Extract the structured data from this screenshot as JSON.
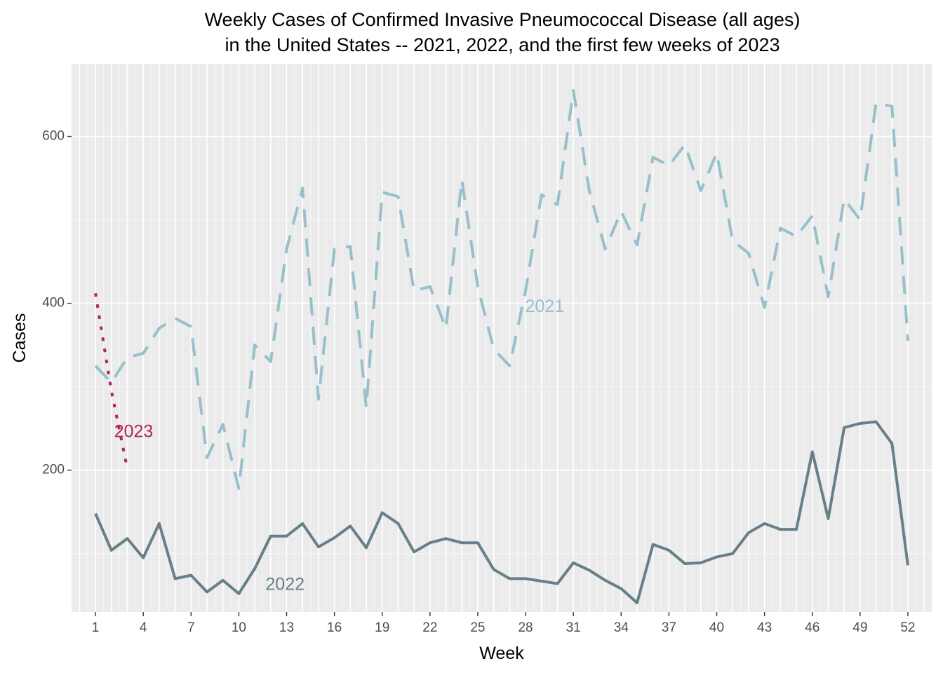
{
  "chart_data": {
    "type": "line",
    "title": "Weekly Cases of Confirmed Invasive Pneumococcal Disease (all ages)",
    "subtitle": "in the United States -- 2021, 2022, and the first few weeks of 2023",
    "xlabel": "Week",
    "ylabel": "Cases",
    "xlim": [
      -0.5,
      53.5
    ],
    "ylim": [
      30,
      687
    ],
    "x_ticks": [
      1,
      4,
      7,
      10,
      13,
      16,
      19,
      22,
      25,
      28,
      31,
      34,
      37,
      40,
      43,
      46,
      49,
      52
    ],
    "y_ticks": [
      200,
      400,
      600
    ],
    "grid": true,
    "legend": "none",
    "series": [
      {
        "name": "2021",
        "color": "#98bfcc",
        "dash": "dashed",
        "label_at": [
          29.2,
          395
        ],
        "x": [
          1,
          2,
          3,
          4,
          5,
          6,
          7,
          8,
          9,
          10,
          11,
          12,
          13,
          14,
          15,
          16,
          17,
          18,
          19,
          20,
          21,
          22,
          23,
          24,
          25,
          26,
          27,
          28,
          29,
          30,
          31,
          32,
          33,
          34,
          35,
          36,
          37,
          38,
          39,
          40,
          41,
          42,
          43,
          44,
          45,
          46,
          47,
          48,
          49,
          50,
          51,
          52
        ],
        "y": [
          325,
          305,
          335,
          340,
          370,
          382,
          372,
          215,
          255,
          178,
          350,
          330,
          465,
          538,
          285,
          465,
          468,
          275,
          533,
          528,
          415,
          420,
          370,
          548,
          420,
          345,
          325,
          415,
          530,
          518,
          655,
          535,
          465,
          510,
          470,
          575,
          565,
          590,
          535,
          580,
          475,
          460,
          395,
          490,
          480,
          505,
          408,
          525,
          500,
          640,
          636,
          355
        ]
      },
      {
        "name": "2022",
        "color": "#687f89",
        "dash": "solid",
        "label_at": [
          12.9,
          62
        ],
        "x": [
          1,
          2,
          3,
          4,
          5,
          6,
          7,
          8,
          9,
          10,
          11,
          12,
          13,
          14,
          15,
          16,
          17,
          18,
          19,
          20,
          21,
          22,
          23,
          24,
          25,
          26,
          27,
          28,
          29,
          30,
          31,
          32,
          33,
          34,
          35,
          36,
          37,
          38,
          39,
          40,
          41,
          42,
          43,
          44,
          45,
          46,
          47,
          48,
          49,
          50,
          51,
          52
        ],
        "y": [
          148,
          104,
          118,
          95,
          136,
          70,
          74,
          54,
          68,
          52,
          82,
          121,
          121,
          136,
          108,
          119,
          133,
          107,
          149,
          136,
          102,
          113,
          118,
          113,
          113,
          81,
          70,
          70,
          67,
          64,
          89,
          80,
          68,
          58,
          41,
          111,
          104,
          88,
          89,
          96,
          100,
          125,
          136,
          129,
          129,
          222,
          142,
          251,
          256,
          258,
          232,
          86
        ]
      },
      {
        "name": "2023",
        "color": "#b5245a",
        "dash": "dotted",
        "label_at": [
          3.4,
          245
        ],
        "x": [
          1,
          2,
          3
        ],
        "y": [
          412,
          295,
          202
        ]
      }
    ]
  }
}
